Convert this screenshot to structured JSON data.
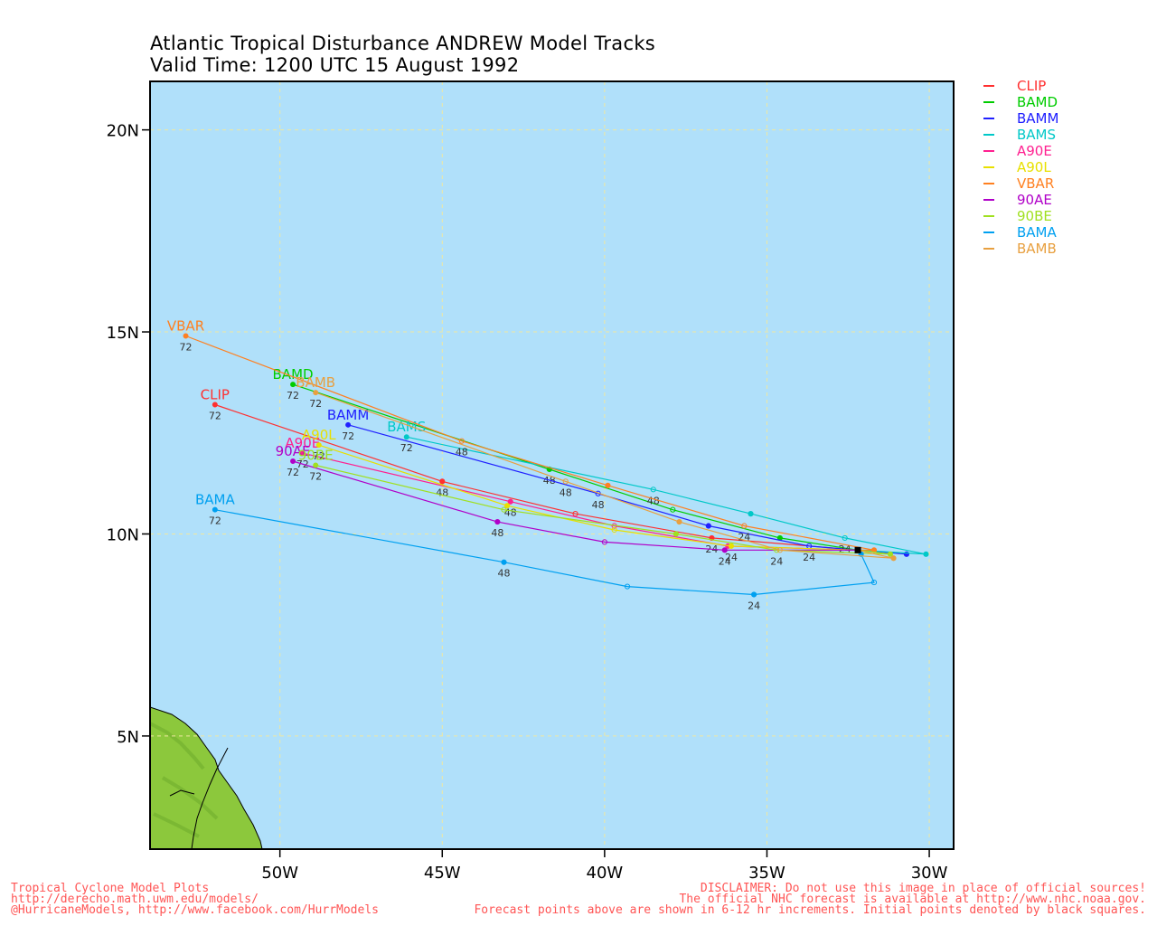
{
  "title_line1": "Atlantic Tropical Disturbance ANDREW Model Tracks",
  "title_line2": "Valid Time: 1200 UTC 15 August 1992",
  "chart_data": {
    "type": "track-map",
    "lon_range": [
      -54,
      -29.25
    ],
    "lat_range": [
      2.2,
      21.2
    ],
    "grid": true,
    "x_ticks": [
      {
        "lon": -50,
        "label": "50W"
      },
      {
        "lon": -45,
        "label": "45W"
      },
      {
        "lon": -40,
        "label": "40W"
      },
      {
        "lon": -35,
        "label": "35W"
      },
      {
        "lon": -30,
        "label": "30W"
      }
    ],
    "y_ticks": [
      {
        "lat": 5,
        "label": "5N"
      },
      {
        "lat": 10,
        "label": "10N"
      },
      {
        "lat": 15,
        "label": "15N"
      },
      {
        "lat": 20,
        "label": "20N"
      }
    ],
    "initial_point": {
      "lon": -32.2,
      "lat": 9.6
    },
    "legend_placement": "right",
    "models": [
      {
        "name": "CLIP",
        "color": "#ff3030",
        "label_end": "CLIP",
        "points": [
          [
            -32.2,
            9.6
          ],
          [
            -36.7,
            9.9
          ],
          [
            -40.9,
            10.5
          ],
          [
            -45.0,
            11.3
          ],
          [
            -52.0,
            13.2
          ]
        ],
        "tau_labels": [
          [
            -36.7,
            "24"
          ],
          [
            -45.0,
            "48"
          ],
          [
            -52.0,
            "72"
          ]
        ]
      },
      {
        "name": "BAMD",
        "color": "#00cc00",
        "label_end": "BAMD",
        "points": [
          [
            -32.2,
            9.6
          ],
          [
            -34.6,
            9.9
          ],
          [
            -37.9,
            10.6
          ],
          [
            -41.7,
            11.6
          ],
          [
            -49.6,
            13.7
          ]
        ],
        "tau_labels": [
          [
            -41.7,
            "48"
          ],
          [
            -49.6,
            "72"
          ]
        ]
      },
      {
        "name": "BAMM",
        "color": "#2020ff",
        "label_end": "BAMM",
        "points": [
          [
            -32.2,
            9.6
          ],
          [
            -30.7,
            9.5
          ],
          [
            -33.7,
            9.7
          ],
          [
            -36.8,
            10.2
          ],
          [
            -40.2,
            11.0
          ],
          [
            -47.9,
            12.7
          ]
        ],
        "tau_labels": [
          [
            -33.7,
            "24"
          ],
          [
            -40.2,
            "48"
          ],
          [
            -47.9,
            "72"
          ]
        ]
      },
      {
        "name": "BAMS",
        "color": "#00c8c8",
        "label_end": "BAMS",
        "points": [
          [
            -32.2,
            9.6
          ],
          [
            -30.1,
            9.5
          ],
          [
            -32.6,
            9.9
          ],
          [
            -35.5,
            10.5
          ],
          [
            -38.5,
            11.1
          ],
          [
            -46.1,
            12.4
          ]
        ],
        "tau_labels": [
          [
            -32.6,
            "24"
          ],
          [
            -38.5,
            "48"
          ],
          [
            -46.1,
            "72"
          ]
        ]
      },
      {
        "name": "A90E",
        "color": "#ff2090",
        "label_end": "A90E",
        "points": [
          [
            -32.2,
            9.6
          ],
          [
            -36.2,
            9.7
          ],
          [
            -39.7,
            10.2
          ],
          [
            -42.9,
            10.8
          ],
          [
            -49.3,
            12.0
          ]
        ],
        "tau_labels": [
          [
            -42.9,
            "48"
          ],
          [
            -49.3,
            "72"
          ]
        ]
      },
      {
        "name": "A90L",
        "color": "#e8e000",
        "label_end": "A90L",
        "points": [
          [
            -32.2,
            9.6
          ],
          [
            -36.1,
            9.7
          ],
          [
            -39.7,
            10.1
          ],
          [
            -43.0,
            10.7
          ],
          [
            -48.8,
            12.2
          ]
        ],
        "tau_labels": [
          [
            -36.1,
            "24"
          ],
          [
            -48.8,
            "72"
          ]
        ]
      },
      {
        "name": "VBAR",
        "color": "#ff8020",
        "label_end": "VBAR",
        "points": [
          [
            -32.2,
            9.6
          ],
          [
            -31.7,
            9.6
          ],
          [
            -35.7,
            10.2
          ],
          [
            -39.9,
            11.2
          ],
          [
            -44.4,
            12.3
          ],
          [
            -52.9,
            14.9
          ]
        ],
        "tau_labels": [
          [
            -35.7,
            "24"
          ],
          [
            -44.4,
            "48"
          ],
          [
            -52.9,
            "72"
          ]
        ]
      },
      {
        "name": "90AE",
        "color": "#b000c8",
        "label_end": "90AE",
        "points": [
          [
            -32.2,
            9.6
          ],
          [
            -36.3,
            9.6
          ],
          [
            -40.0,
            9.8
          ],
          [
            -43.3,
            10.3
          ],
          [
            -49.6,
            11.8
          ]
        ],
        "tau_labels": [
          [
            -36.3,
            "24"
          ],
          [
            -43.3,
            "48"
          ],
          [
            -49.6,
            "72"
          ]
        ]
      },
      {
        "name": "90BE",
        "color": "#a0e020",
        "label_end": "90BE",
        "points": [
          [
            -32.2,
            9.6
          ],
          [
            -31.2,
            9.5
          ],
          [
            -34.7,
            9.6
          ],
          [
            -37.8,
            10.0
          ],
          [
            -43.1,
            10.6
          ],
          [
            -48.9,
            11.7
          ]
        ],
        "tau_labels": [
          [
            -34.7,
            "24"
          ],
          [
            -48.9,
            "72"
          ]
        ]
      },
      {
        "name": "BAMA",
        "color": "#00a0f0",
        "label_end": "BAMA",
        "points": [
          [
            -32.2,
            9.6
          ],
          [
            -32.1,
            9.5
          ],
          [
            -31.7,
            8.8
          ],
          [
            -35.4,
            8.5
          ],
          [
            -39.3,
            8.7
          ],
          [
            -43.1,
            9.3
          ],
          [
            -52.0,
            10.6
          ]
        ],
        "tau_labels": [
          [
            -35.4,
            "24"
          ],
          [
            -43.1,
            "48"
          ],
          [
            -52.0,
            "72"
          ]
        ]
      },
      {
        "name": "BAMB",
        "color": "#e8a040",
        "label_end": "BAMB",
        "points": [
          [
            -32.2,
            9.6
          ],
          [
            -31.1,
            9.4
          ],
          [
            -34.6,
            9.6
          ],
          [
            -37.7,
            10.3
          ],
          [
            -41.2,
            11.3
          ],
          [
            -48.9,
            13.5
          ]
        ],
        "tau_labels": [
          [
            -41.2,
            "48"
          ],
          [
            -48.9,
            "72"
          ]
        ]
      }
    ]
  },
  "footer_left": [
    "Tropical Cyclone Model Plots",
    "http://derecho.math.uwm.edu/models/",
    "@HurricaneModels, http://www.facebook.com/HurrModels"
  ],
  "footer_right": [
    "DISCLAIMER: Do not use this image in place of official sources!",
    "The official NHC forecast is available at http://www.nhc.noaa.gov.",
    "Forecast points above are shown in 6-12 hr increments. Initial points denoted by black squares."
  ],
  "colors": {
    "ocean": "#b0e0fa",
    "land": "#8cc83c",
    "grid": "#f0e8a0",
    "footer_text": "#ff5555"
  }
}
